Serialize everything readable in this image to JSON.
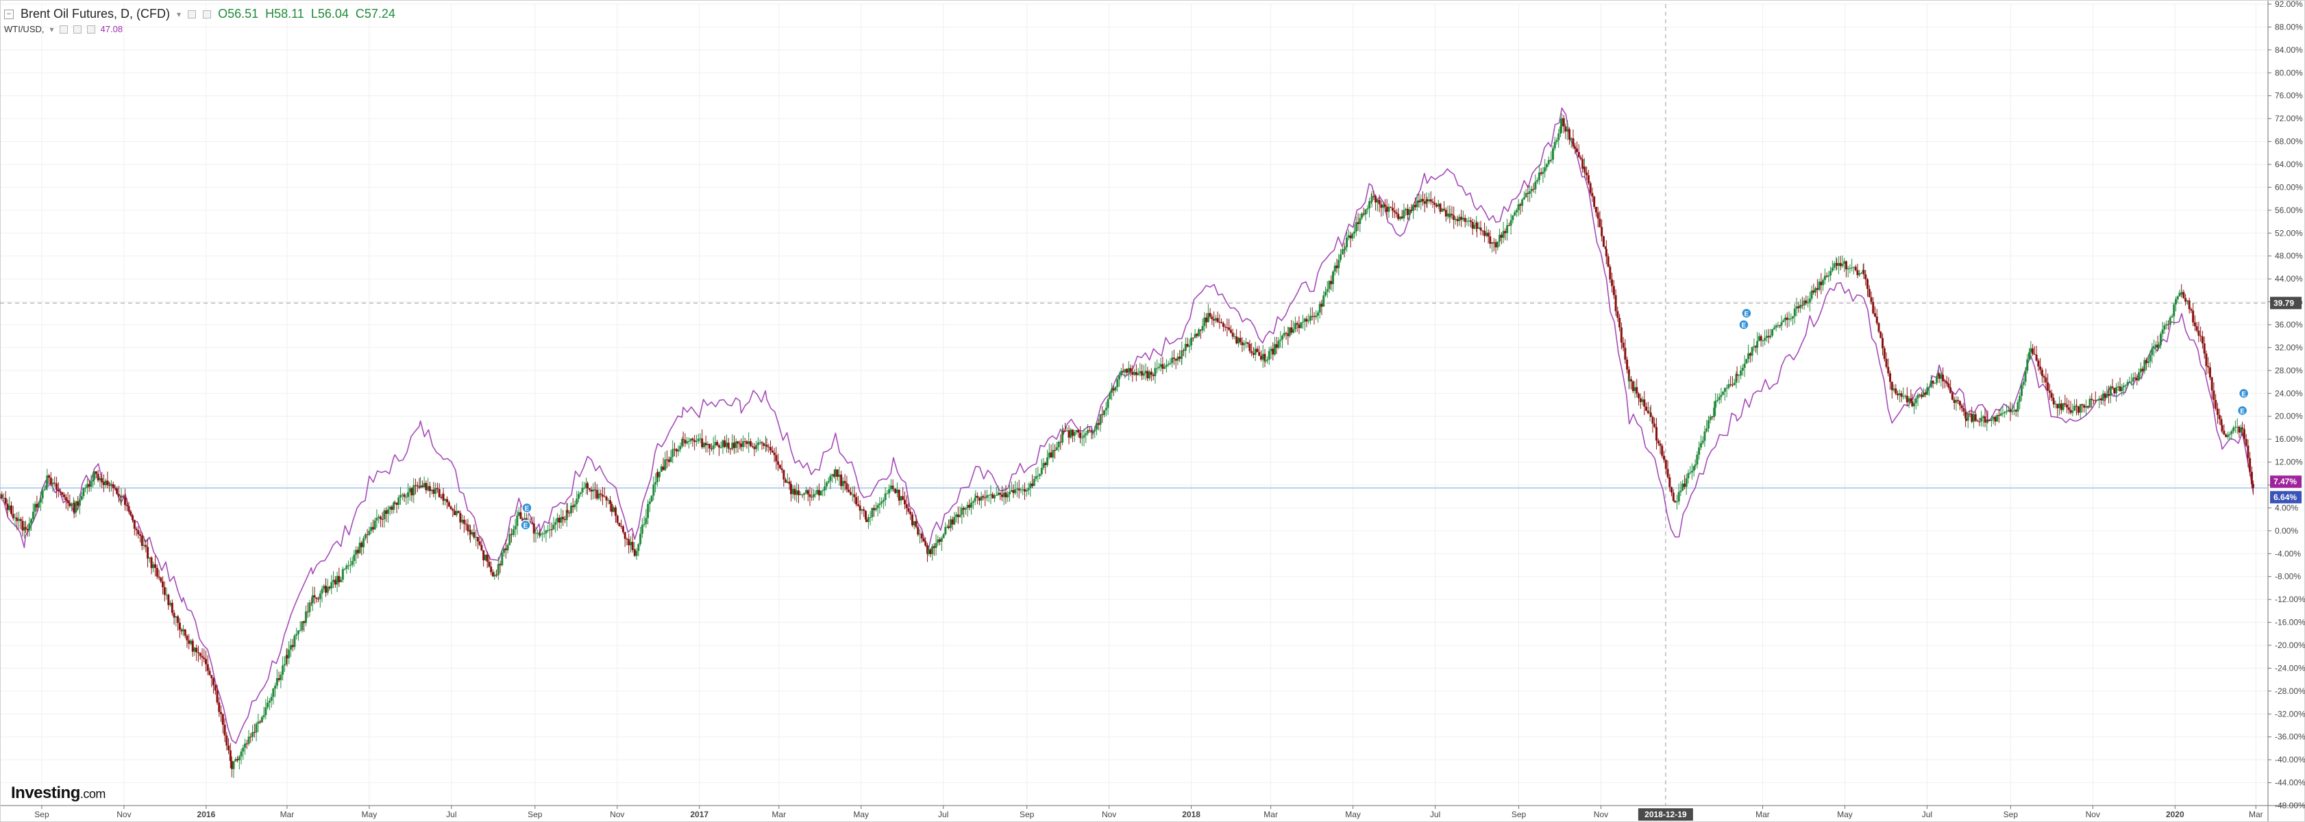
{
  "legend": {
    "title": "Brent Oil Futures, D, (CFD)",
    "open": "O56.51",
    "high": "H58.11",
    "low": "L56.04",
    "close": "C57.24",
    "compare_name": "WTI/USD,",
    "compare_value": "47.08"
  },
  "watermark": {
    "brand": "Investing",
    "suffix": ".com"
  },
  "colors": {
    "up": "#208a3a",
    "down": "#8a1010",
    "compare_line": "#a54bb8",
    "grid": "#efefef",
    "marker": "#2f8fd8",
    "current_tag_purple": "#a0239e",
    "current_tag_blue": "#3a53b8",
    "crosshair_tag": "#4a4a4a"
  },
  "chart_data": {
    "type": "line",
    "title": "Brent Oil Futures, D, (CFD)",
    "y_unit": "percent",
    "ylim": [
      -48,
      92
    ],
    "yticks": [
      "92.00%",
      "88.00%",
      "84.00%",
      "80.00%",
      "76.00%",
      "72.00%",
      "68.00%",
      "64.00%",
      "60.00%",
      "56.00%",
      "52.00%",
      "48.00%",
      "44.00%",
      "40.00%",
      "36.00%",
      "32.00%",
      "28.00%",
      "24.00%",
      "20.00%",
      "16.00%",
      "12.00%",
      "8.00%",
      "4.00%",
      "0.00%",
      "-4.00%",
      "-8.00%",
      "-12.00%",
      "-16.00%",
      "-20.00%",
      "-24.00%",
      "-28.00%",
      "-32.00%",
      "-36.00%",
      "-40.00%",
      "-44.00%",
      "-48.00%"
    ],
    "x_ticks": [
      "Sep",
      "Nov",
      "2016",
      "Mar",
      "May",
      "Jul",
      "Sep",
      "Nov",
      "2017",
      "Mar",
      "May",
      "Jul",
      "Sep",
      "Nov",
      "2018",
      "Mar",
      "May",
      "Jul",
      "Sep",
      "Nov",
      "2018-12-19",
      "Mar",
      "May",
      "Jul",
      "Sep",
      "Nov",
      "2020",
      "Mar"
    ],
    "x_tick_bold": [
      false,
      false,
      true,
      false,
      false,
      false,
      false,
      false,
      true,
      false,
      false,
      false,
      false,
      false,
      true,
      false,
      false,
      false,
      false,
      false,
      true,
      false,
      false,
      false,
      false,
      false,
      true,
      false
    ],
    "grid": true,
    "series": [
      {
        "name": "Brent Oil Futures",
        "style": "candlestick",
        "points": [
          [
            "2015-08-01",
            6
          ],
          [
            "2015-08-20",
            0
          ],
          [
            "2015-09-05",
            9
          ],
          [
            "2015-09-25",
            4
          ],
          [
            "2015-10-10",
            10
          ],
          [
            "2015-10-30",
            6
          ],
          [
            "2015-11-20",
            -5
          ],
          [
            "2015-12-15",
            -18
          ],
          [
            "2016-01-05",
            -25
          ],
          [
            "2016-01-20",
            -41
          ],
          [
            "2016-02-10",
            -33
          ],
          [
            "2016-03-01",
            -22
          ],
          [
            "2016-03-20",
            -12
          ],
          [
            "2016-04-10",
            -8
          ],
          [
            "2016-05-01",
            0
          ],
          [
            "2016-05-20",
            5
          ],
          [
            "2016-06-08",
            8
          ],
          [
            "2016-06-25",
            6
          ],
          [
            "2016-07-15",
            0
          ],
          [
            "2016-08-02",
            -8
          ],
          [
            "2016-08-20",
            3
          ],
          [
            "2016-09-05",
            -1
          ],
          [
            "2016-09-25",
            3
          ],
          [
            "2016-10-10",
            8
          ],
          [
            "2016-10-28",
            4
          ],
          [
            "2016-11-14",
            -4
          ],
          [
            "2016-12-01",
            10
          ],
          [
            "2016-12-20",
            16
          ],
          [
            "2017-01-10",
            15
          ],
          [
            "2017-02-01",
            15
          ],
          [
            "2017-02-20",
            15
          ],
          [
            "2017-03-10",
            7
          ],
          [
            "2017-03-28",
            6
          ],
          [
            "2017-04-12",
            10
          ],
          [
            "2017-05-05",
            2
          ],
          [
            "2017-05-25",
            8
          ],
          [
            "2017-06-20",
            -4
          ],
          [
            "2017-07-05",
            1
          ],
          [
            "2017-07-25",
            6
          ],
          [
            "2017-08-15",
            6
          ],
          [
            "2017-09-05",
            8
          ],
          [
            "2017-09-28",
            17
          ],
          [
            "2017-10-20",
            17
          ],
          [
            "2017-11-10",
            28
          ],
          [
            "2017-12-01",
            27
          ],
          [
            "2017-12-25",
            31
          ],
          [
            "2018-01-15",
            38
          ],
          [
            "2018-02-05",
            33
          ],
          [
            "2018-02-25",
            30
          ],
          [
            "2018-03-15",
            35
          ],
          [
            "2018-04-05",
            38
          ],
          [
            "2018-04-25",
            50
          ],
          [
            "2018-05-15",
            58
          ],
          [
            "2018-06-05",
            55
          ],
          [
            "2018-06-25",
            58
          ],
          [
            "2018-07-12",
            55
          ],
          [
            "2018-08-01",
            53
          ],
          [
            "2018-08-15",
            50
          ],
          [
            "2018-09-05",
            58
          ],
          [
            "2018-09-25",
            65
          ],
          [
            "2018-10-03",
            72
          ],
          [
            "2018-10-20",
            63
          ],
          [
            "2018-11-05",
            48
          ],
          [
            "2018-11-22",
            26
          ],
          [
            "2018-12-08",
            20
          ],
          [
            "2018-12-26",
            5
          ],
          [
            "2019-01-10",
            12
          ],
          [
            "2019-01-25",
            22
          ],
          [
            "2019-02-10",
            27
          ],
          [
            "2019-02-25",
            33
          ],
          [
            "2019-03-15",
            36
          ],
          [
            "2019-04-05",
            41
          ],
          [
            "2019-04-25",
            47
          ],
          [
            "2019-05-15",
            45
          ],
          [
            "2019-06-05",
            25
          ],
          [
            "2019-06-20",
            22
          ],
          [
            "2019-07-10",
            27
          ],
          [
            "2019-07-30",
            20
          ],
          [
            "2019-08-15",
            19
          ],
          [
            "2019-09-05",
            21
          ],
          [
            "2019-09-16",
            32
          ],
          [
            "2019-10-03",
            22
          ],
          [
            "2019-10-20",
            21
          ],
          [
            "2019-11-10",
            24
          ],
          [
            "2019-12-01",
            26
          ],
          [
            "2019-12-20",
            33
          ],
          [
            "2020-01-06",
            42
          ],
          [
            "2020-01-20",
            34
          ],
          [
            "2020-02-05",
            17
          ],
          [
            "2020-02-20",
            18
          ],
          [
            "2020-02-28",
            7.47
          ]
        ]
      },
      {
        "name": "WTI/USD",
        "style": "line",
        "points": [
          [
            "2015-08-01",
            6
          ],
          [
            "2015-08-20",
            -2
          ],
          [
            "2015-09-05",
            9
          ],
          [
            "2015-09-25",
            4
          ],
          [
            "2015-10-10",
            11
          ],
          [
            "2015-10-30",
            6
          ],
          [
            "2015-11-20",
            -2
          ],
          [
            "2015-12-15",
            -12
          ],
          [
            "2016-01-05",
            -22
          ],
          [
            "2016-01-20",
            -38
          ],
          [
            "2016-02-10",
            -28
          ],
          [
            "2016-03-01",
            -18
          ],
          [
            "2016-03-20",
            -6
          ],
          [
            "2016-04-10",
            -2
          ],
          [
            "2016-05-01",
            8
          ],
          [
            "2016-05-20",
            12
          ],
          [
            "2016-06-08",
            18
          ],
          [
            "2016-06-25",
            14
          ],
          [
            "2016-07-15",
            4
          ],
          [
            "2016-08-02",
            -6
          ],
          [
            "2016-08-20",
            6
          ],
          [
            "2016-09-05",
            0
          ],
          [
            "2016-09-25",
            6
          ],
          [
            "2016-10-10",
            14
          ],
          [
            "2016-10-28",
            8
          ],
          [
            "2016-11-14",
            -2
          ],
          [
            "2016-12-01",
            14
          ],
          [
            "2016-12-20",
            20
          ],
          [
            "2017-01-10",
            22
          ],
          [
            "2017-02-01",
            22
          ],
          [
            "2017-02-20",
            24
          ],
          [
            "2017-03-10",
            14
          ],
          [
            "2017-03-28",
            10
          ],
          [
            "2017-04-12",
            16
          ],
          [
            "2017-05-05",
            6
          ],
          [
            "2017-05-25",
            12
          ],
          [
            "2017-06-20",
            -2
          ],
          [
            "2017-07-05",
            4
          ],
          [
            "2017-07-25",
            10
          ],
          [
            "2017-08-15",
            8
          ],
          [
            "2017-09-05",
            12
          ],
          [
            "2017-09-28",
            18
          ],
          [
            "2017-10-20",
            18
          ],
          [
            "2017-11-10",
            28
          ],
          [
            "2017-12-01",
            30
          ],
          [
            "2017-12-25",
            35
          ],
          [
            "2018-01-15",
            44
          ],
          [
            "2018-02-05",
            38
          ],
          [
            "2018-02-25",
            34
          ],
          [
            "2018-03-15",
            40
          ],
          [
            "2018-04-05",
            44
          ],
          [
            "2018-04-25",
            52
          ],
          [
            "2018-05-15",
            60
          ],
          [
            "2018-06-05",
            52
          ],
          [
            "2018-06-25",
            62
          ],
          [
            "2018-07-12",
            64
          ],
          [
            "2018-08-01",
            56
          ],
          [
            "2018-08-15",
            54
          ],
          [
            "2018-09-05",
            60
          ],
          [
            "2018-09-25",
            68
          ],
          [
            "2018-10-03",
            74
          ],
          [
            "2018-10-20",
            62
          ],
          [
            "2018-11-05",
            44
          ],
          [
            "2018-11-22",
            20
          ],
          [
            "2018-12-08",
            14
          ],
          [
            "2018-12-26",
            -2
          ],
          [
            "2019-01-10",
            8
          ],
          [
            "2019-01-25",
            16
          ],
          [
            "2019-02-10",
            20
          ],
          [
            "2019-02-25",
            24
          ],
          [
            "2019-03-15",
            28
          ],
          [
            "2019-04-05",
            36
          ],
          [
            "2019-04-25",
            44
          ],
          [
            "2019-05-15",
            40
          ],
          [
            "2019-06-05",
            20
          ],
          [
            "2019-06-20",
            22
          ],
          [
            "2019-07-10",
            28
          ],
          [
            "2019-07-30",
            22
          ],
          [
            "2019-08-15",
            20
          ],
          [
            "2019-09-05",
            22
          ],
          [
            "2019-09-16",
            30
          ],
          [
            "2019-10-03",
            20
          ],
          [
            "2019-10-20",
            20
          ],
          [
            "2019-11-10",
            24
          ],
          [
            "2019-12-01",
            26
          ],
          [
            "2019-12-20",
            32
          ],
          [
            "2020-01-06",
            38
          ],
          [
            "2020-01-20",
            30
          ],
          [
            "2020-02-05",
            14
          ],
          [
            "2020-02-20",
            16
          ],
          [
            "2020-02-28",
            6.64
          ]
        ]
      }
    ],
    "crosshair": {
      "y": 39.79,
      "x_label": "2018-12-19"
    },
    "current_values": [
      {
        "series": "Brent Oil Futures",
        "label": "7.47%"
      },
      {
        "series": "WTI/USD",
        "label": "6.64%"
      }
    ],
    "crosshair_y_label": "39.79",
    "event_markers": [
      {
        "date": "2016-08-25",
        "y": 1,
        "label": "E"
      },
      {
        "date": "2016-08-26",
        "y": 4,
        "label": "E"
      },
      {
        "date": "2019-02-15",
        "y": 36,
        "label": "E"
      },
      {
        "date": "2019-02-17",
        "y": 38,
        "label": "E"
      },
      {
        "date": "2020-02-20",
        "y": 21,
        "label": "E"
      },
      {
        "date": "2020-02-21",
        "y": 24,
        "label": "E"
      }
    ]
  }
}
